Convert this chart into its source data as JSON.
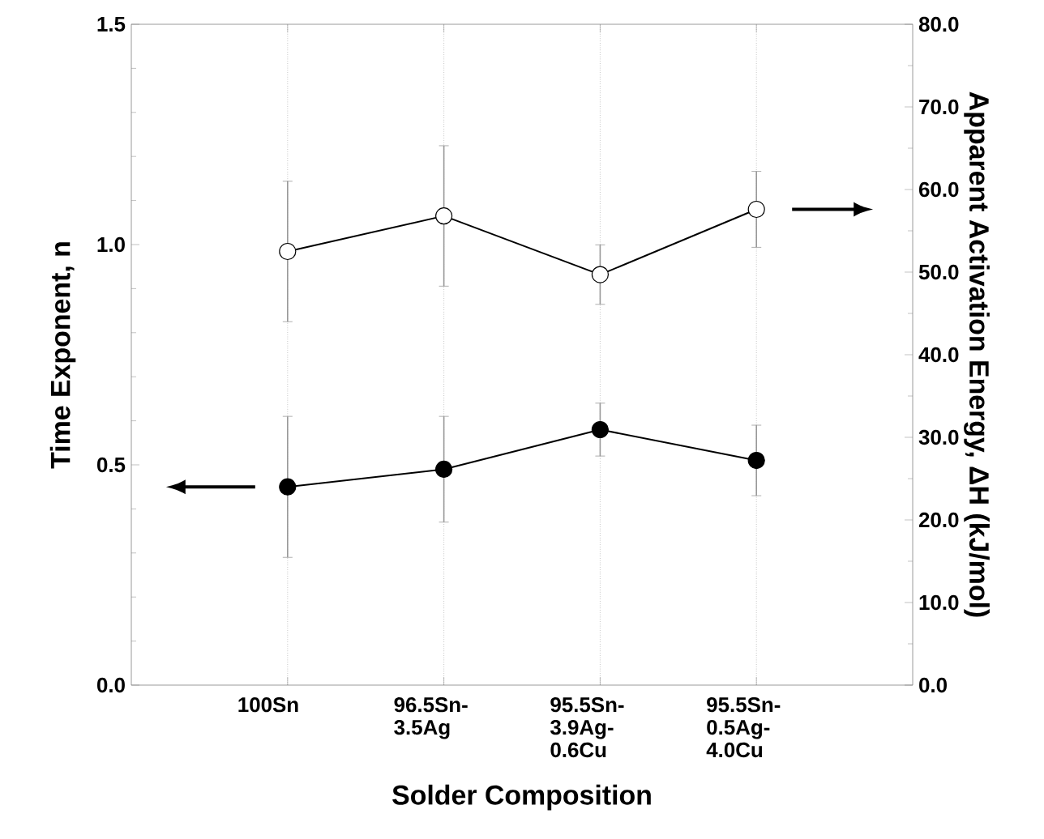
{
  "chart_data": {
    "type": "line",
    "categories": [
      "100Sn",
      "96.5Sn-3.5Ag",
      "95.5Sn-3.9Ag-0.6Cu",
      "95.5Sn-0.5Ag-4.0Cu"
    ],
    "xlabel": "Solder Composition",
    "ylabel": "Time Exponent, n",
    "y2label": "Apparent Activation Energy, ΔH  (kJ/mol)",
    "ylim": [
      0,
      1.5
    ],
    "yticks": [
      {
        "value": 0,
        "label": "0.0"
      },
      {
        "value": 0.5,
        "label": "0.5"
      },
      {
        "value": 1.0,
        "label": "1.0"
      },
      {
        "value": 1.5,
        "label": "1.5"
      }
    ],
    "y2lim": [
      0,
      80
    ],
    "y2ticks": [
      {
        "value": 0,
        "label": "0.0"
      },
      {
        "value": 10,
        "label": "10.0"
      },
      {
        "value": 20,
        "label": "20.0"
      },
      {
        "value": 30,
        "label": "30.0"
      },
      {
        "value": 40,
        "label": "40.0"
      },
      {
        "value": 50,
        "label": "50.0"
      },
      {
        "value": 60,
        "label": "60.0"
      },
      {
        "value": 70,
        "label": "70.0"
      },
      {
        "value": 80,
        "label": "80.0"
      }
    ],
    "grid": "x",
    "marker": "circle",
    "line_style": "solid",
    "series": [
      {
        "color": "#000000",
        "values": [
          0.45,
          0.49,
          0.58,
          0.51
        ],
        "errors": [
          0.16,
          0.12,
          0.06,
          0.08
        ]
      },
      {
        "color": "#ffffff",
        "axis": "y2",
        "values": [
          52.5,
          56.8,
          49.7,
          57.6
        ],
        "errors": [
          8.5,
          8.5,
          3.6,
          4.6
        ]
      }
    ]
  }
}
